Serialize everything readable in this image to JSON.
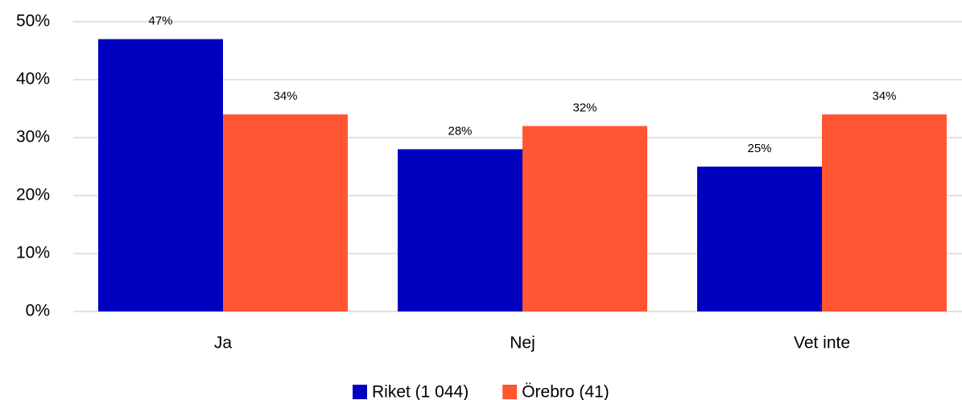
{
  "chart_data": {
    "type": "bar",
    "categories": [
      "Ja",
      "Nej",
      "Vet inte"
    ],
    "series": [
      {
        "name": "Riket (1 044)",
        "color": "#0000c0",
        "values": [
          47,
          28,
          25
        ],
        "value_labels": [
          "47%",
          "28%",
          "25%"
        ]
      },
      {
        "name": "Örebro (41)",
        "color": "#ff5533",
        "values": [
          34,
          32,
          34
        ],
        "value_labels": [
          "34%",
          "32%",
          "34%"
        ]
      }
    ],
    "ylim": [
      0,
      50
    ],
    "yticks": [
      {
        "value": 0,
        "label": "0%"
      },
      {
        "value": 10,
        "label": "10%"
      },
      {
        "value": 20,
        "label": "20%"
      },
      {
        "value": 30,
        "label": "30%"
      },
      {
        "value": 40,
        "label": "40%"
      },
      {
        "value": 50,
        "label": "50%"
      }
    ],
    "grid": true
  }
}
